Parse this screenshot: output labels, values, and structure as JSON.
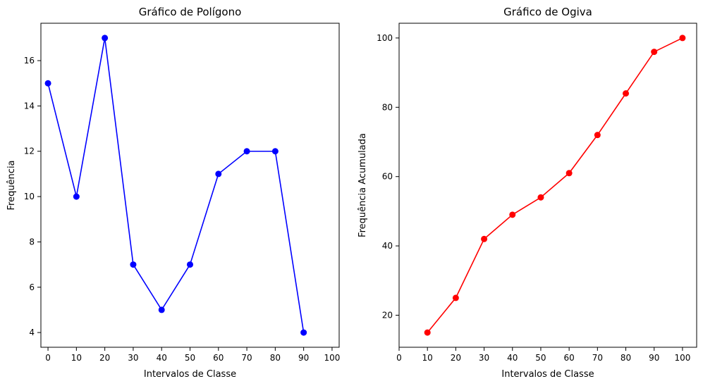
{
  "chart_data": [
    {
      "type": "line",
      "title": "Gráfico de Polígono",
      "xlabel": "Intervalos de Classe",
      "ylabel": "Frequência",
      "x": [
        0,
        10,
        20,
        30,
        40,
        50,
        60,
        70,
        80,
        90
      ],
      "y": [
        15,
        10,
        17,
        7,
        5,
        7,
        11,
        12,
        12,
        4
      ],
      "xlim": [
        -2.5,
        102.5
      ],
      "ylim": [
        3.35,
        17.65
      ],
      "xticks": [
        0,
        10,
        20,
        30,
        40,
        50,
        60,
        70,
        80,
        90,
        100
      ],
      "yticks": [
        4,
        6,
        8,
        10,
        12,
        14,
        16
      ],
      "color": "#0000ff",
      "marker": "circle",
      "grid": false
    },
    {
      "type": "line",
      "title": "Gráfico de Ogiva",
      "xlabel": "Intervalos de Classe",
      "ylabel": "Frequência Acumulada",
      "x": [
        10,
        20,
        30,
        40,
        50,
        60,
        70,
        80,
        90,
        100
      ],
      "y": [
        15,
        25,
        42,
        49,
        54,
        61,
        72,
        84,
        96,
        100
      ],
      "xlim": [
        0,
        105
      ],
      "ylim": [
        10.75,
        104.25
      ],
      "xticks": [
        0,
        10,
        20,
        30,
        40,
        50,
        60,
        70,
        80,
        90,
        100
      ],
      "yticks": [
        20,
        40,
        60,
        80,
        100
      ],
      "color": "#ff0000",
      "marker": "circle",
      "grid": false
    }
  ]
}
